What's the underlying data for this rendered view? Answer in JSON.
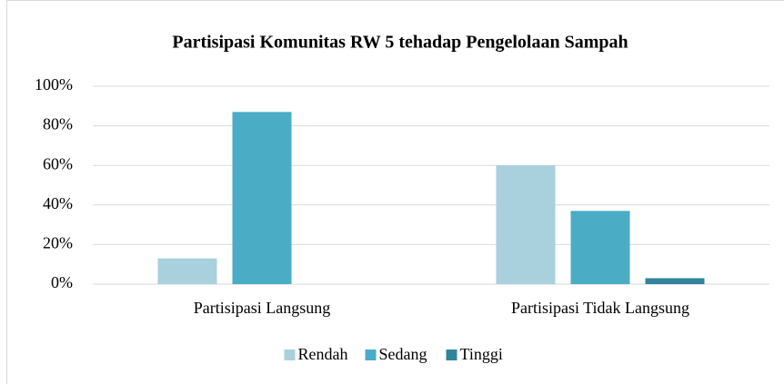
{
  "chart_data": {
    "type": "bar",
    "title": "Partisipasi Komunitas RW 5 tehadap Pengelolaan Sampah",
    "categories": [
      "Partisipasi Langsung",
      "Partisipasi Tidak Langsung"
    ],
    "series": [
      {
        "name": "Rendah",
        "color": "#a9d0dd",
        "values": [
          13,
          60
        ]
      },
      {
        "name": "Sedang",
        "color": "#4bacc6",
        "values": [
          87,
          37
        ]
      },
      {
        "name": "Tinggi",
        "color": "#31849b",
        "values": [
          0,
          3
        ]
      }
    ],
    "ylim": [
      0,
      100
    ],
    "yticks": [
      {
        "value": 0,
        "label": "0%"
      },
      {
        "value": 20,
        "label": "20%"
      },
      {
        "value": 40,
        "label": "40%"
      },
      {
        "value": 60,
        "label": "60%"
      },
      {
        "value": 80,
        "label": "80%"
      },
      {
        "value": 100,
        "label": "100%"
      }
    ],
    "grid": true,
    "legend": "bottom"
  }
}
